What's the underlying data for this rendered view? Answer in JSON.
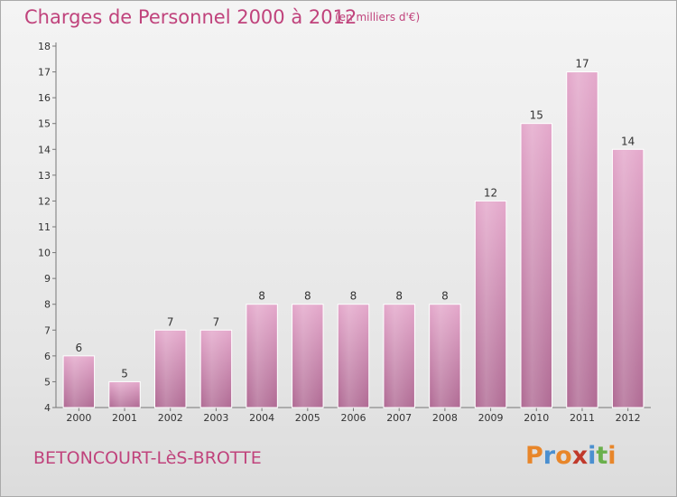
{
  "header": {
    "title": "Charges de Personnel 2000 à 2012",
    "subtitle": "(en milliers d'€)"
  },
  "footer": {
    "commune": "BETONCOURT-LèS-BROTTE",
    "logo": "Proxiti",
    "logo_colors": [
      "#e8862a",
      "#4a8fd0",
      "#e8862a",
      "#c0392b",
      "#4a8fd0",
      "#6ab04c",
      "#e8862a"
    ]
  },
  "colors": {
    "bar_top": "#e4a8cb",
    "bar_bottom": "#b06b94",
    "accent": "#c0437c"
  },
  "chart_data": {
    "type": "bar",
    "title": "Charges de Personnel 2000 à 2012",
    "subtitle": "(en milliers d'€)",
    "xlabel": "",
    "ylabel": "",
    "categories": [
      "2000",
      "2001",
      "2002",
      "2003",
      "2004",
      "2005",
      "2006",
      "2007",
      "2008",
      "2009",
      "2010",
      "2011",
      "2012"
    ],
    "values": [
      6,
      5,
      7,
      7,
      8,
      8,
      8,
      8,
      8,
      12,
      15,
      17,
      14
    ],
    "ylim": [
      4,
      18
    ],
    "yticks": [
      4,
      5,
      6,
      7,
      8,
      9,
      10,
      11,
      12,
      13,
      14,
      15,
      16,
      17,
      18
    ],
    "grid": false,
    "legend": "none"
  }
}
